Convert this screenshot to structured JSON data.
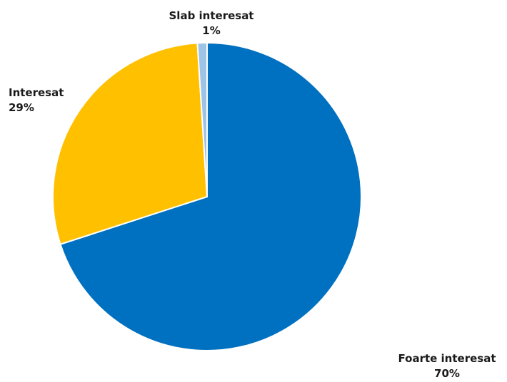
{
  "chart_data": {
    "type": "pie",
    "title": "",
    "slices": [
      {
        "name": "Foarte interesat",
        "value": 70,
        "label_value": "70%",
        "color": "#0070c0"
      },
      {
        "name": "Interesat",
        "value": 29,
        "label_value": "29%",
        "color": "#ffc000"
      },
      {
        "name": "Slab interesat",
        "value": 1,
        "label_value": "1%",
        "color": "#9dc3e6"
      }
    ],
    "start": "12 o'clock",
    "direction": "clockwise",
    "legend": "none"
  }
}
